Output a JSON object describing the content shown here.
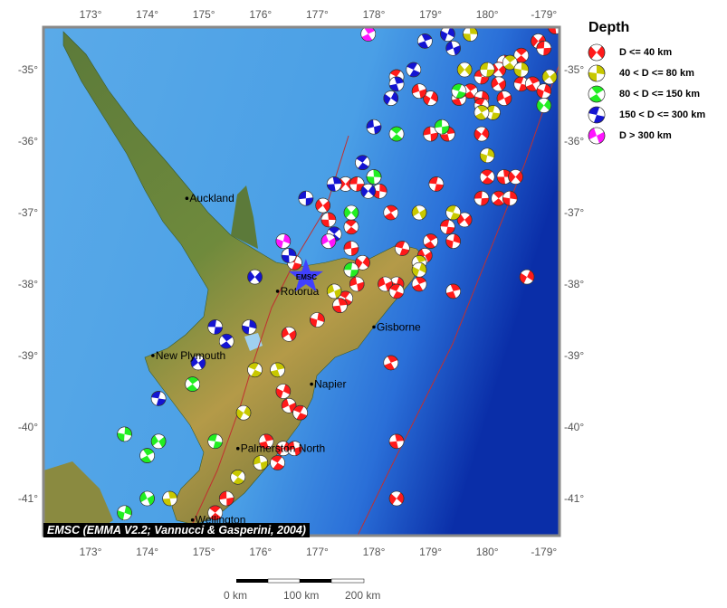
{
  "legend": {
    "title": "Depth",
    "items": [
      {
        "label": "D <= 40 km",
        "color": "#ff1a1a"
      },
      {
        "label": "40 < D <= 80 km",
        "color": "#c8c800"
      },
      {
        "label": "80 < D <= 150 km",
        "color": "#22ee22"
      },
      {
        "label": "150 < D <= 300 km",
        "color": "#1414d2"
      },
      {
        "label": "D > 300 km",
        "color": "#ff14ff"
      }
    ]
  },
  "credit": "EMSC (EMMA V2.2; Vannucci & Gasperini, 2004)",
  "scale_bar": {
    "labels": [
      "0 km",
      "100 km",
      "200 km"
    ]
  },
  "axes": {
    "lon_ticks": [
      {
        "value": 173,
        "label": "173°"
      },
      {
        "value": 174,
        "label": "174°"
      },
      {
        "value": 175,
        "label": "175°"
      },
      {
        "value": 176,
        "label": "176°"
      },
      {
        "value": 177,
        "label": "177°"
      },
      {
        "value": 178,
        "label": "178°"
      },
      {
        "value": 179,
        "label": "179°"
      },
      {
        "value": 180,
        "label": "180°"
      },
      {
        "value": 181,
        "label": "-179°"
      }
    ],
    "lat_ticks": [
      {
        "value": -35,
        "label": "-35°"
      },
      {
        "value": -36,
        "label": "-36°"
      },
      {
        "value": -37,
        "label": "-37°"
      },
      {
        "value": -38,
        "label": "-38°"
      },
      {
        "value": -39,
        "label": "-39°"
      },
      {
        "value": -40,
        "label": "-40°"
      },
      {
        "value": -41,
        "label": "-41°"
      }
    ]
  },
  "marker": {
    "label": "EMSC",
    "lon": 176.8,
    "lat": -37.9,
    "color": "#4040ff"
  },
  "cities": [
    {
      "name": "Auckland",
      "lon": 174.7,
      "lat": -36.8
    },
    {
      "name": "Rotorua",
      "lon": 176.3,
      "lat": -38.1
    },
    {
      "name": "Gisborne",
      "lon": 178.0,
      "lat": -38.6
    },
    {
      "name": "New Plymouth",
      "lon": 174.1,
      "lat": -39.0
    },
    {
      "name": "Napier",
      "lon": 176.9,
      "lat": -39.4
    },
    {
      "name": "Palmerston North",
      "lon": 175.6,
      "lat": -40.3
    },
    {
      "name": "Wellington",
      "lon": 174.8,
      "lat": -41.3
    }
  ],
  "events": {
    "0": [
      [
        -178.8,
        -34.4
      ],
      [
        -179.1,
        -34.6
      ],
      [
        -179.0,
        -34.7
      ],
      [
        -179.4,
        -34.8
      ],
      [
        -179.7,
        -34.9
      ],
      [
        -179.8,
        -35.0
      ],
      [
        179.9,
        -35.1
      ],
      [
        179.7,
        -35.3
      ],
      [
        179.9,
        -35.4
      ],
      [
        -179.8,
        -35.2
      ],
      [
        -179.4,
        -35.2
      ],
      [
        -179.2,
        -35.2
      ],
      [
        -179.0,
        -35.3
      ],
      [
        -179.7,
        -35.4
      ],
      [
        179.9,
        -35.5
      ],
      [
        179.5,
        -35.4
      ],
      [
        179.0,
        -35.4
      ],
      [
        178.8,
        -35.3
      ],
      [
        178.4,
        -35.1
      ],
      [
        179.3,
        -35.9
      ],
      [
        179.9,
        -35.9
      ],
      [
        179.0,
        -35.9
      ],
      [
        180.0,
        -36.5
      ],
      [
        -179.7,
        -36.5
      ],
      [
        -179.5,
        -36.5
      ],
      [
        179.9,
        -36.8
      ],
      [
        -179.8,
        -36.8
      ],
      [
        -179.6,
        -36.8
      ],
      [
        179.6,
        -37.1
      ],
      [
        179.3,
        -37.2
      ],
      [
        179.0,
        -37.4
      ],
      [
        179.4,
        -37.4
      ],
      [
        178.9,
        -37.6
      ],
      [
        178.5,
        -37.5
      ],
      [
        178.8,
        -38.0
      ],
      [
        178.4,
        -38.0
      ],
      [
        178.2,
        -38.0
      ],
      [
        178.4,
        -38.1
      ],
      [
        179.4,
        -38.1
      ],
      [
        -179.3,
        -37.9
      ],
      [
        177.7,
        -38.0
      ],
      [
        177.5,
        -38.2
      ],
      [
        177.4,
        -38.3
      ],
      [
        177.8,
        -37.7
      ],
      [
        177.6,
        -37.5
      ],
      [
        177.6,
        -37.2
      ],
      [
        177.2,
        -37.1
      ],
      [
        177.5,
        -36.6
      ],
      [
        177.7,
        -36.6
      ],
      [
        178.0,
        -36.5
      ],
      [
        178.1,
        -36.7
      ],
      [
        177.1,
        -36.9
      ],
      [
        179.1,
        -36.6
      ],
      [
        178.3,
        -37.0
      ],
      [
        177.0,
        -38.5
      ],
      [
        176.5,
        -38.7
      ],
      [
        176.6,
        -37.7
      ],
      [
        178.3,
        -39.1
      ],
      [
        176.4,
        -39.5
      ],
      [
        176.5,
        -39.7
      ],
      [
        176.7,
        -39.8
      ],
      [
        176.1,
        -40.2
      ],
      [
        176.4,
        -40.3
      ],
      [
        176.6,
        -40.3
      ],
      [
        176.3,
        -40.5
      ],
      [
        178.4,
        -40.2
      ],
      [
        178.4,
        -41.0
      ],
      [
        175.4,
        -41.0
      ],
      [
        175.2,
        -41.2
      ]
    ],
    "1": [
      [
        179.7,
        -34.5
      ],
      [
        179.6,
        -35.0
      ],
      [
        180.0,
        -35.0
      ],
      [
        -179.6,
        -34.9
      ],
      [
        -179.4,
        -35.0
      ],
      [
        -178.9,
        -35.1
      ],
      [
        -179.9,
        -35.6
      ],
      [
        179.9,
        -35.6
      ],
      [
        180.0,
        -36.2
      ],
      [
        178.8,
        -37.0
      ],
      [
        179.4,
        -37.0
      ],
      [
        178.8,
        -37.7
      ],
      [
        178.8,
        -37.8
      ],
      [
        177.3,
        -38.1
      ],
      [
        175.9,
        -39.2
      ],
      [
        176.3,
        -39.2
      ],
      [
        175.7,
        -39.8
      ],
      [
        176.0,
        -40.5
      ],
      [
        175.6,
        -40.7
      ],
      [
        174.4,
        -41.0
      ]
    ],
    "2": [
      [
        -179.0,
        -35.5
      ],
      [
        179.2,
        -35.8
      ],
      [
        178.4,
        -35.9
      ],
      [
        178.0,
        -36.5
      ],
      [
        177.6,
        -37.0
      ],
      [
        177.6,
        -37.8
      ],
      [
        174.8,
        -39.4
      ],
      [
        173.6,
        -40.1
      ],
      [
        174.2,
        -40.2
      ],
      [
        175.2,
        -40.2
      ],
      [
        174.0,
        -40.4
      ],
      [
        173.6,
        -41.2
      ],
      [
        174.0,
        -41.0
      ],
      [
        179.5,
        -35.3
      ]
    ],
    "3": [
      [
        178.9,
        -34.6
      ],
      [
        179.3,
        -34.5
      ],
      [
        179.4,
        -34.7
      ],
      [
        178.7,
        -35.0
      ],
      [
        178.4,
        -35.2
      ],
      [
        178.3,
        -35.4
      ],
      [
        178.0,
        -35.8
      ],
      [
        177.8,
        -36.3
      ],
      [
        177.3,
        -36.6
      ],
      [
        177.9,
        -36.7
      ],
      [
        176.8,
        -36.8
      ],
      [
        177.3,
        -37.3
      ],
      [
        176.5,
        -37.6
      ],
      [
        175.9,
        -37.9
      ],
      [
        175.2,
        -38.6
      ],
      [
        175.4,
        -38.8
      ],
      [
        175.8,
        -38.6
      ],
      [
        174.9,
        -39.1
      ],
      [
        174.2,
        -39.6
      ]
    ],
    "4": [
      [
        177.9,
        -34.5
      ],
      [
        176.4,
        -37.4
      ],
      [
        177.2,
        -37.4
      ]
    ]
  }
}
